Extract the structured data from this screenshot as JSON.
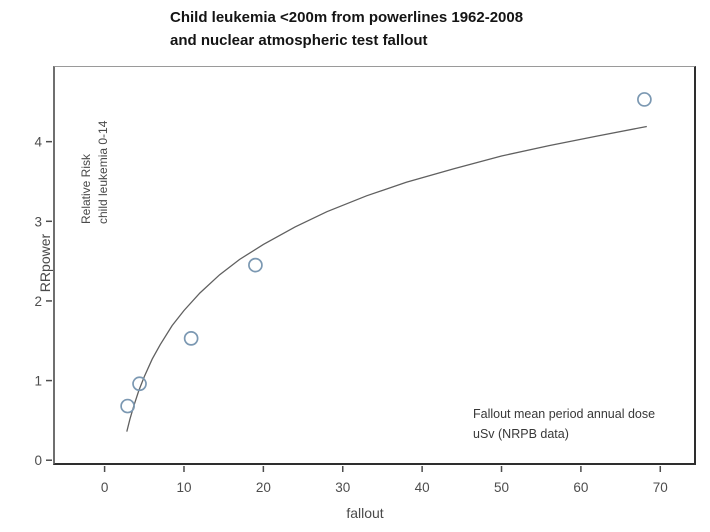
{
  "page": {
    "title_line1": "Child leukemia <200m from powerlines 1962-2008",
    "title_line2": "and nuclear atmospheric test fallout"
  },
  "chart_data": {
    "type": "scatter",
    "title": "Child leukemia <200m from powerlines 1962-2008 and nuclear atmospheric test fallout",
    "xlabel": "fallout",
    "ylabel": "RRpower",
    "xlim": [
      -6.5,
      74.5
    ],
    "ylim": [
      -0.06,
      4.95
    ],
    "x_ticks": [
      0,
      10,
      20,
      30,
      40,
      50,
      60,
      70
    ],
    "y_ticks": [
      0,
      1,
      2,
      3,
      4
    ],
    "grid": false,
    "legend": "none",
    "points": [
      {
        "x": 2.9,
        "y": 0.68
      },
      {
        "x": 4.4,
        "y": 0.96
      },
      {
        "x": 10.9,
        "y": 1.53
      },
      {
        "x": 19.0,
        "y": 2.45
      },
      {
        "x": 68.0,
        "y": 4.53
      }
    ],
    "fit_curve": {
      "type": "log",
      "formula": "RR = 1.2*ln(dose) - 0.88",
      "points": [
        [
          2.8,
          0.36
        ],
        [
          3.2,
          0.52
        ],
        [
          3.7,
          0.69
        ],
        [
          4.3,
          0.87
        ],
        [
          5.0,
          1.05
        ],
        [
          6.0,
          1.27
        ],
        [
          7.0,
          1.45
        ],
        [
          8.5,
          1.69
        ],
        [
          10.0,
          1.88
        ],
        [
          12.0,
          2.1
        ],
        [
          14.5,
          2.33
        ],
        [
          17.0,
          2.52
        ],
        [
          20.0,
          2.71
        ],
        [
          24.0,
          2.93
        ],
        [
          28.0,
          3.12
        ],
        [
          33.0,
          3.32
        ],
        [
          38.0,
          3.49
        ],
        [
          44.0,
          3.66
        ],
        [
          50.0,
          3.82
        ],
        [
          56.0,
          3.95
        ],
        [
          62.0,
          4.07
        ],
        [
          68.3,
          4.19
        ]
      ]
    },
    "annotations": {
      "inner_left_line1": "Relative Risk",
      "inner_left_line2": "child leukemia 0-14",
      "bottom_right_line1": "Fallout mean period annual dose",
      "bottom_right_line2": "uSv (NRPB data)"
    },
    "colors": {
      "point_stroke": "#7b98b2",
      "curve": "#606060",
      "tick": "#4d4d4d",
      "axis_dark": "#2e2e2e"
    }
  }
}
